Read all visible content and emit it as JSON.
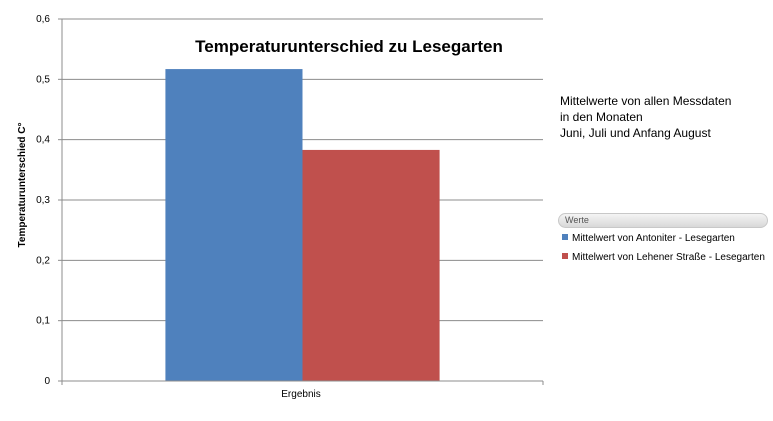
{
  "chart_data": {
    "type": "bar",
    "title": "Temperaturunterschied zu Lesegarten",
    "ylabel": "Temperaturunterschied  C°",
    "xlabel": "",
    "categories": [
      "Ergebnis"
    ],
    "ylim": [
      0,
      0.6
    ],
    "yticks": [
      0,
      0.1,
      0.2,
      0.3,
      0.4,
      0.5,
      0.6
    ],
    "ytick_labels": [
      "0",
      "0,1",
      "0,2",
      "0,3",
      "0,4",
      "0,5",
      "0,6"
    ],
    "grid": true,
    "legend_placement": "right",
    "series": [
      {
        "name": "Mittelwert von Antoniter - Lesegarten",
        "values": [
          0.517
        ],
        "color": "#4f81bd"
      },
      {
        "name": "Mittelwert von Lehener Straße - Lesegarten",
        "values": [
          0.383
        ],
        "color": "#c0504d"
      }
    ]
  },
  "note": {
    "lines": [
      "Mittelwerte von allen Messdaten",
      "in den Monaten",
      "Juni, Juli und  Anfang August"
    ]
  },
  "legend": {
    "header": "Werte"
  }
}
